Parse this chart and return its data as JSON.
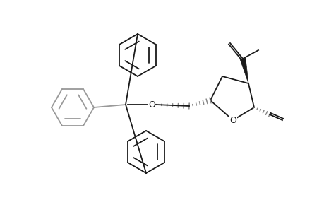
{
  "background_color": "#ffffff",
  "line_color": "#1a1a1a",
  "gray_color": "#888888",
  "figure_width": 4.6,
  "figure_height": 3.0,
  "dpi": 100,
  "line_width": 1.3
}
